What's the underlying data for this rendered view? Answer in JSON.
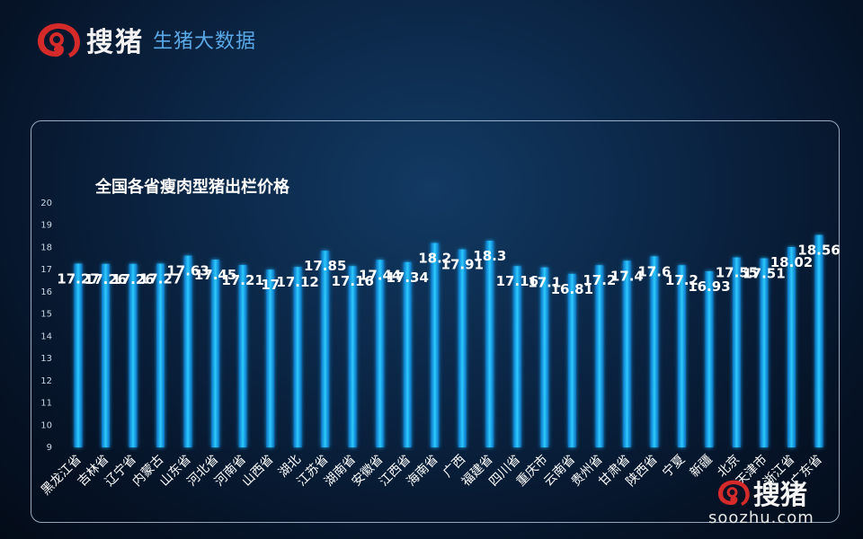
{
  "header": {
    "logo_name": "搜猪",
    "subtitle": "生猪大数据"
  },
  "watermark": {
    "name": "搜猪",
    "url": "soozhu.com"
  },
  "colors": {
    "bar": "#19b8f0",
    "bar_glow": "#0a7fd0",
    "logo_red": "#d42a2a",
    "subtitle_blue": "#5aa9e6"
  },
  "chart_data": {
    "type": "bar",
    "title": "全国各省瘦肉型猪出栏价格",
    "categories": [
      "黑龙江省",
      "吉林省",
      "辽宁省",
      "内蒙古",
      "山东省",
      "河北省",
      "河南省",
      "山西省",
      "湖北",
      "江苏省",
      "湖南省",
      "安徽省",
      "江西省",
      "海南省",
      "广西",
      "福建省",
      "四川省",
      "重庆市",
      "云南省",
      "贵州省",
      "甘肃省",
      "陕西省",
      "宁夏",
      "新疆",
      "北京",
      "天津市",
      "浙江省",
      "广东省"
    ],
    "values": [
      17.27,
      17.26,
      17.26,
      17.27,
      17.63,
      17.45,
      17.21,
      17,
      17.12,
      17.85,
      17.16,
      17.44,
      17.34,
      18.2,
      17.91,
      18.3,
      17.16,
      17.1,
      16.81,
      17.2,
      17.4,
      17.6,
      17.2,
      16.93,
      17.55,
      17.51,
      18.02,
      18.56
    ],
    "value_labels": [
      "17.27",
      "17.26",
      "17.26",
      "17.27",
      "17.63",
      "17.45",
      "17.21",
      "17",
      "17.12",
      "17.85",
      "17.16",
      "17.44",
      "17.34",
      "18.2",
      "17.91",
      "18.3",
      "17.16",
      "17.1",
      "16.81",
      "17.2",
      "17.4",
      "17.6",
      "17.2",
      "16.93",
      "17.55",
      "17.51",
      "18.02",
      "18.56"
    ],
    "ylim": [
      9,
      20
    ],
    "yticks": [
      9,
      10,
      11,
      12,
      13,
      14,
      15,
      16,
      17,
      18,
      19,
      20
    ],
    "grid": false,
    "legend": "none"
  }
}
